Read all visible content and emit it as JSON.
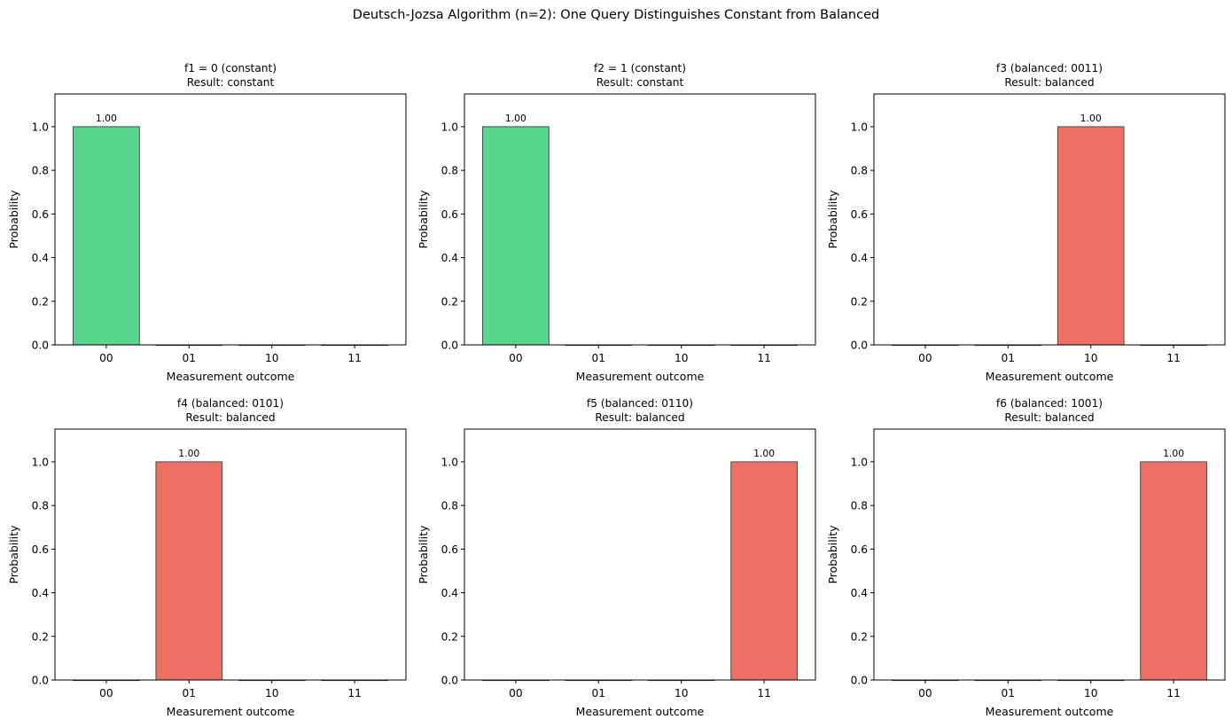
{
  "figure": {
    "suptitle": "Deutsch-Jozsa Algorithm (n=2): One Query Distinguishes Constant from Balanced"
  },
  "colors": {
    "constant": "#58d68d",
    "balanced": "#ec7063",
    "bar_edge": "#4a4a4a"
  },
  "chart_data": [
    {
      "type": "bar",
      "title": "f1 = 0 (constant)",
      "subtitle": "Result: constant",
      "categories": [
        "00",
        "01",
        "10",
        "11"
      ],
      "values": [
        1.0,
        0.0,
        0.0,
        0.0
      ],
      "data_labels": [
        "1.00",
        "",
        "",
        ""
      ],
      "bar_color": "#58d68d",
      "xlabel": "Measurement outcome",
      "ylabel": "Probability",
      "ylim": [
        0,
        1.15
      ],
      "yticks": [
        "0.0",
        "0.2",
        "0.4",
        "0.6",
        "0.8",
        "1.0"
      ],
      "grid": false
    },
    {
      "type": "bar",
      "title": "f2 = 1 (constant)",
      "subtitle": "Result: constant",
      "categories": [
        "00",
        "01",
        "10",
        "11"
      ],
      "values": [
        1.0,
        0.0,
        0.0,
        0.0
      ],
      "data_labels": [
        "1.00",
        "",
        "",
        ""
      ],
      "bar_color": "#58d68d",
      "xlabel": "Measurement outcome",
      "ylabel": "Probability",
      "ylim": [
        0,
        1.15
      ],
      "yticks": [
        "0.0",
        "0.2",
        "0.4",
        "0.6",
        "0.8",
        "1.0"
      ],
      "grid": false
    },
    {
      "type": "bar",
      "title": "f3 (balanced: 0011)",
      "subtitle": "Result: balanced",
      "categories": [
        "00",
        "01",
        "10",
        "11"
      ],
      "values": [
        0.0,
        0.0,
        1.0,
        0.0
      ],
      "data_labels": [
        "",
        "",
        "1.00",
        ""
      ],
      "bar_color": "#ec7063",
      "xlabel": "Measurement outcome",
      "ylabel": "Probability",
      "ylim": [
        0,
        1.15
      ],
      "yticks": [
        "0.0",
        "0.2",
        "0.4",
        "0.6",
        "0.8",
        "1.0"
      ],
      "grid": false
    },
    {
      "type": "bar",
      "title": "f4 (balanced: 0101)",
      "subtitle": "Result: balanced",
      "categories": [
        "00",
        "01",
        "10",
        "11"
      ],
      "values": [
        0.0,
        1.0,
        0.0,
        0.0
      ],
      "data_labels": [
        "",
        "1.00",
        "",
        ""
      ],
      "bar_color": "#ec7063",
      "xlabel": "Measurement outcome",
      "ylabel": "Probability",
      "ylim": [
        0,
        1.15
      ],
      "yticks": [
        "0.0",
        "0.2",
        "0.4",
        "0.6",
        "0.8",
        "1.0"
      ],
      "grid": false
    },
    {
      "type": "bar",
      "title": "f5 (balanced: 0110)",
      "subtitle": "Result: balanced",
      "categories": [
        "00",
        "01",
        "10",
        "11"
      ],
      "values": [
        0.0,
        0.0,
        0.0,
        1.0
      ],
      "data_labels": [
        "",
        "",
        "",
        "1.00"
      ],
      "bar_color": "#ec7063",
      "xlabel": "Measurement outcome",
      "ylabel": "Probability",
      "ylim": [
        0,
        1.15
      ],
      "yticks": [
        "0.0",
        "0.2",
        "0.4",
        "0.6",
        "0.8",
        "1.0"
      ],
      "grid": false
    },
    {
      "type": "bar",
      "title": "f6 (balanced: 1001)",
      "subtitle": "Result: balanced",
      "categories": [
        "00",
        "01",
        "10",
        "11"
      ],
      "values": [
        0.0,
        0.0,
        0.0,
        1.0
      ],
      "data_labels": [
        "",
        "",
        "",
        "1.00"
      ],
      "bar_color": "#ec7063",
      "xlabel": "Measurement outcome",
      "ylabel": "Probability",
      "ylim": [
        0,
        1.15
      ],
      "yticks": [
        "0.0",
        "0.2",
        "0.4",
        "0.6",
        "0.8",
        "1.0"
      ],
      "grid": false
    }
  ]
}
